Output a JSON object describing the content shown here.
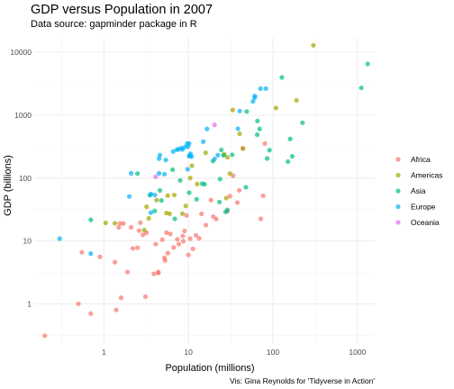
{
  "chart_data": {
    "type": "scatter",
    "title": "GDP versus Population in 2007",
    "subtitle": "Data source: gapminder package in R",
    "xlabel": "Population (millions)",
    "ylabel": "GDP (billions)",
    "caption": "Vis: Gina Reynolds for 'Tidyverse in Action'",
    "x_scale": "log10",
    "y_scale": "log10",
    "xlim": [
      0.15,
      1600
    ],
    "ylim": [
      0.23,
      17000
    ],
    "x_ticks": [
      {
        "value": 1,
        "label": "1"
      },
      {
        "value": 10,
        "label": "10"
      },
      {
        "value": 100,
        "label": "100"
      },
      {
        "value": 1000,
        "label": "1000"
      }
    ],
    "y_ticks": [
      {
        "value": 1,
        "label": "1"
      },
      {
        "value": 10,
        "label": "10"
      },
      {
        "value": 100,
        "label": "100"
      },
      {
        "value": 1000,
        "label": "1000"
      },
      {
        "value": 10000,
        "label": "10000"
      }
    ],
    "grid": true,
    "legend_position": "right",
    "series": [
      {
        "name": "Africa",
        "color": "#F8766D",
        "points": [
          [
            0.2,
            0.31
          ],
          [
            0.5,
            1.0
          ],
          [
            0.7,
            0.7
          ],
          [
            1.4,
            0.8
          ],
          [
            1.6,
            1.25
          ],
          [
            3.1,
            1.3
          ],
          [
            0.55,
            6.6
          ],
          [
            0.9,
            5.6
          ],
          [
            1.35,
            4.6
          ],
          [
            1.5,
            16.4
          ],
          [
            1.55,
            19
          ],
          [
            1.7,
            19
          ],
          [
            1.9,
            3.2
          ],
          [
            2.2,
            7.6
          ],
          [
            2.1,
            16.5
          ],
          [
            2.5,
            7.8
          ],
          [
            2.6,
            14.6
          ],
          [
            2.7,
            19.5
          ],
          [
            2.9,
            12.5
          ],
          [
            3.2,
            13.5
          ],
          [
            3.9,
            3.0
          ],
          [
            4.1,
            8.9
          ],
          [
            4.4,
            3.1
          ],
          [
            4.4,
            3.2
          ],
          [
            4.9,
            10.5
          ],
          [
            5.2,
            5.4
          ],
          [
            5.3,
            4.9
          ],
          [
            5.5,
            13.6
          ],
          [
            5.7,
            6.4
          ],
          [
            6.1,
            12.9
          ],
          [
            6.7,
            7.9
          ],
          [
            7.4,
            10.6
          ],
          [
            7.7,
            8.9
          ],
          [
            8.6,
            12.0
          ],
          [
            8.7,
            9.9
          ],
          [
            9.0,
            14.4
          ],
          [
            9.5,
            25.5
          ],
          [
            10.0,
            6.0
          ],
          [
            10.5,
            10.9
          ],
          [
            11.3,
            7.5
          ],
          [
            12.3,
            12.3
          ],
          [
            13.4,
            11.0
          ],
          [
            14.3,
            27.0
          ],
          [
            16.1,
            17.9
          ],
          [
            18.5,
            44.6
          ],
          [
            19.7,
            24.4
          ],
          [
            21.3,
            22.3
          ],
          [
            29.0,
            29.7
          ],
          [
            31.0,
            51.5
          ],
          [
            33.8,
            109
          ],
          [
            38.0,
            40.8
          ],
          [
            40.0,
            63.9
          ],
          [
            44.0,
            297
          ],
          [
            71.9,
            22.5
          ],
          [
            76.5,
            52.4
          ],
          [
            80.3,
            354
          ]
        ]
      },
      {
        "name": "Americas",
        "color": "#A3A500",
        "points": [
          [
            1.05,
            19.4
          ],
          [
            1.35,
            19.1
          ],
          [
            3.0,
            14.9
          ],
          [
            3.2,
            35.0
          ],
          [
            3.4,
            22.9
          ],
          [
            4.2,
            44.7
          ],
          [
            5.5,
            27.8
          ],
          [
            5.7,
            52.6
          ],
          [
            6.0,
            27.0
          ],
          [
            6.8,
            53.8
          ],
          [
            8.5,
            27.2
          ],
          [
            9.3,
            36.1
          ],
          [
            10.5,
            100.0
          ],
          [
            11.0,
            157
          ],
          [
            12.7,
            80.6
          ],
          [
            16.0,
            252
          ],
          [
            26.5,
            240
          ],
          [
            29.0,
            214
          ],
          [
            31.0,
            118
          ],
          [
            33.4,
            1210
          ],
          [
            40.3,
            507
          ],
          [
            44.2,
            294
          ],
          [
            108.7,
            1302
          ],
          [
            190.0,
            1722
          ],
          [
            301.1,
            12935
          ],
          [
            28.0,
            48
          ]
        ]
      },
      {
        "name": "Asia",
        "color": "#00BF7D",
        "points": [
          [
            0.7,
            21.7
          ],
          [
            2.5,
            118
          ],
          [
            3.5,
            53.5
          ],
          [
            4.0,
            30
          ],
          [
            4.6,
            63.5
          ],
          [
            4.8,
            44.0
          ],
          [
            6.5,
            136
          ],
          [
            6.9,
            22.5
          ],
          [
            8.0,
            92.0
          ],
          [
            10.2,
            58.6
          ],
          [
            12.5,
            46.0
          ],
          [
            14.6,
            81.4
          ],
          [
            15.5,
            80.0
          ],
          [
            19.5,
            186
          ],
          [
            23.3,
            41.7
          ],
          [
            23.7,
            96.3
          ],
          [
            24.5,
            280
          ],
          [
            26.0,
            230
          ],
          [
            27.5,
            29.0
          ],
          [
            28.9,
            31.2
          ],
          [
            33.0,
            235
          ],
          [
            47.8,
            71.5
          ],
          [
            49.0,
            1145
          ],
          [
            65.1,
            489
          ],
          [
            69.5,
            604
          ],
          [
            65.6,
            810
          ],
          [
            85.3,
            205
          ],
          [
            91.0,
            278
          ],
          [
            150.4,
            183
          ],
          [
            160.0,
            420
          ],
          [
            169.3,
            222
          ],
          [
            223.5,
            758
          ],
          [
            127.5,
            3985
          ],
          [
            1110.4,
            2723
          ],
          [
            1318.7,
            6539
          ]
        ]
      },
      {
        "name": "Europe",
        "color": "#00B0F6",
        "points": [
          [
            0.3,
            10.9
          ],
          [
            0.7,
            6.3
          ],
          [
            2.0,
            51.0
          ],
          [
            2.1,
            119
          ],
          [
            3.6,
            28.2
          ],
          [
            3.6,
            55.7
          ],
          [
            4.0,
            53.8
          ],
          [
            4.5,
            119
          ],
          [
            4.5,
            204
          ],
          [
            4.6,
            232
          ],
          [
            5.2,
            115
          ],
          [
            5.4,
            194
          ],
          [
            6.6,
            264
          ],
          [
            7.3,
            283
          ],
          [
            7.6,
            286
          ],
          [
            8.2,
            300
          ],
          [
            9.1,
            312
          ],
          [
            9.8,
            138
          ],
          [
            9.9,
            316
          ],
          [
            10.2,
            224
          ],
          [
            10.2,
            354
          ],
          [
            10.4,
            226
          ],
          [
            10.6,
            244
          ],
          [
            20.4,
            202
          ],
          [
            22.3,
            232
          ],
          [
            38.5,
            609
          ],
          [
            40.4,
            1165
          ],
          [
            58.1,
            1661
          ],
          [
            60.8,
            1901
          ],
          [
            61.1,
            2022
          ],
          [
            71.2,
            2637
          ],
          [
            82.4,
            2652
          ],
          [
            16.6,
            605
          ],
          [
            15.0,
            380
          ],
          [
            8.5,
            285
          ],
          [
            9.7,
            355
          ],
          [
            10.9,
            220
          ]
        ]
      },
      {
        "name": "Oceania",
        "color": "#E76BF3",
        "points": [
          [
            4.1,
            105
          ],
          [
            20.4,
            703
          ]
        ]
      }
    ]
  }
}
